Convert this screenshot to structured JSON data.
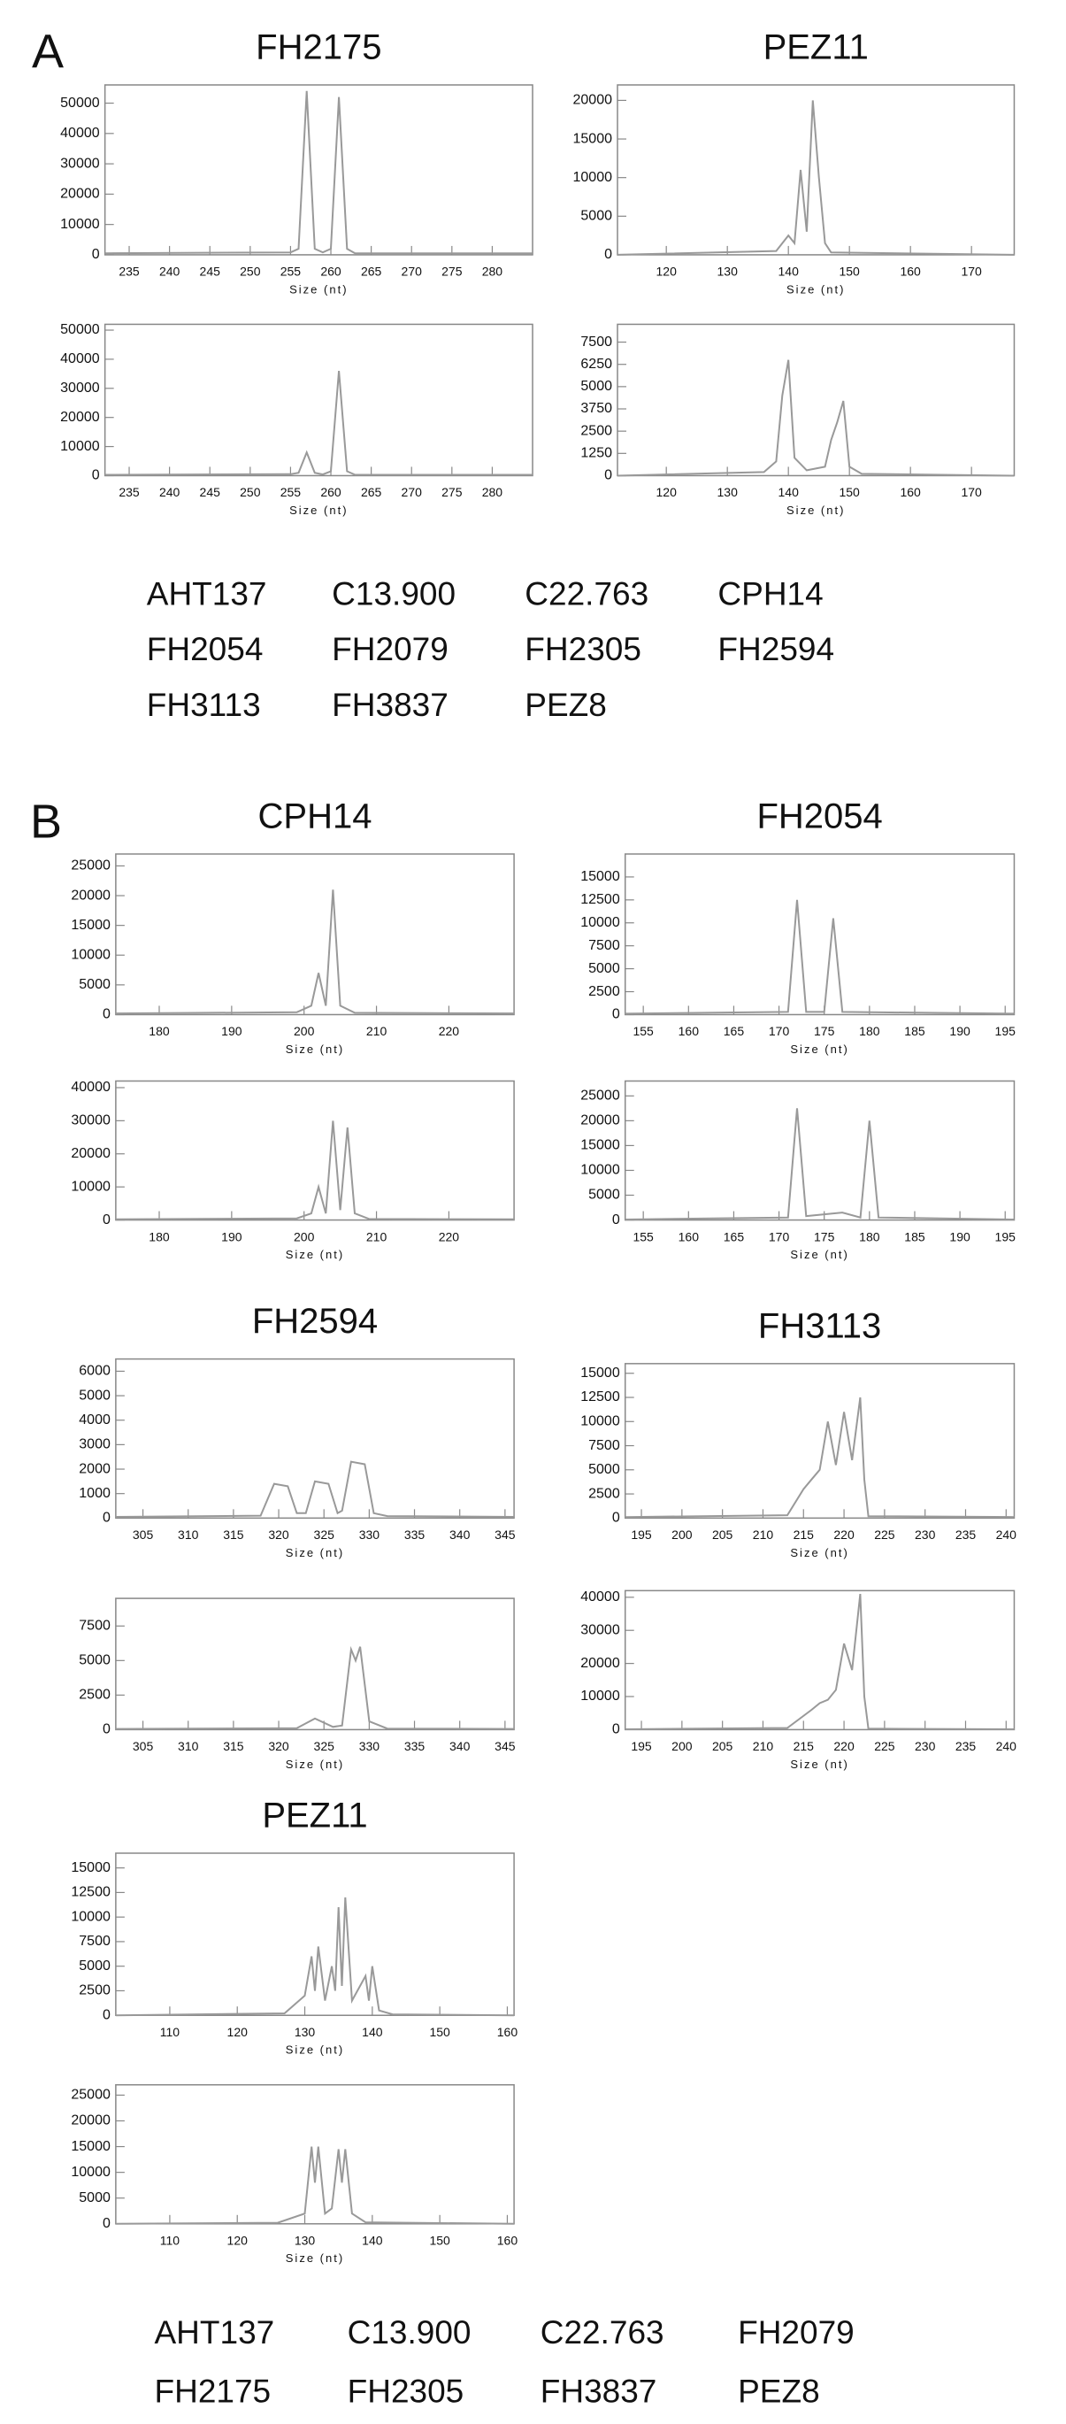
{
  "figure": {
    "label_a": "A",
    "label_b": "B",
    "markers_a": [
      [
        "AHT137",
        "C13.900",
        "C22.763",
        "CPH14"
      ],
      [
        "FH2054",
        "FH2079",
        "FH2305",
        "FH2594"
      ],
      [
        "FH3113",
        "FH3837",
        "PEZ8"
      ]
    ],
    "markers_b": [
      [
        "AHT137",
        "C13.900",
        "C22.763",
        "FH2079"
      ],
      [
        "FH2175",
        "FH2305",
        "FH3837",
        "PEZ8"
      ]
    ]
  },
  "chart_data": [
    {
      "type": "line",
      "title": "FH2175",
      "xlabel": "Size (nt)",
      "color": "#999999",
      "xlim": [
        232,
        285
      ],
      "xticks": [
        235,
        240,
        245,
        250,
        255,
        260,
        265,
        270,
        275,
        280
      ],
      "ylim": [
        0,
        56000
      ],
      "yticks": [
        0,
        10000,
        20000,
        30000,
        40000,
        50000
      ],
      "x": [
        232,
        255,
        256,
        257,
        258,
        259,
        260,
        261,
        262,
        263,
        285
      ],
      "values": [
        500,
        800,
        2000,
        54000,
        2000,
        800,
        2000,
        52000,
        2000,
        500,
        500
      ]
    },
    {
      "type": "line",
      "xlabel": "Size (nt)",
      "color": "#999999",
      "xlim": [
        232,
        285
      ],
      "xticks": [
        235,
        240,
        245,
        250,
        255,
        260,
        265,
        270,
        275,
        280
      ],
      "ylim": [
        0,
        52000
      ],
      "yticks": [
        0,
        10000,
        20000,
        30000,
        40000,
        50000
      ],
      "x": [
        232,
        255,
        256,
        257,
        258,
        259,
        260,
        261,
        262,
        263,
        285
      ],
      "values": [
        300,
        500,
        1000,
        8000,
        1000,
        400,
        1500,
        36000,
        1500,
        300,
        300
      ]
    },
    {
      "type": "line",
      "title": "PEZ11",
      "xlabel": "Size (nt)",
      "color": "#999999",
      "xlim": [
        112,
        177
      ],
      "xticks": [
        120,
        130,
        140,
        150,
        160,
        170
      ],
      "ylim": [
        0,
        22000
      ],
      "yticks": [
        0,
        5000,
        10000,
        15000,
        20000
      ],
      "x": [
        112,
        138,
        140,
        141,
        142,
        143,
        144,
        145,
        146,
        147,
        177
      ],
      "values": [
        0,
        500,
        2500,
        1500,
        11000,
        3000,
        20000,
        10000,
        1500,
        300,
        0
      ]
    },
    {
      "type": "line",
      "xlabel": "Size (nt)",
      "color": "#999999",
      "xlim": [
        112,
        177
      ],
      "xticks": [
        120,
        130,
        140,
        150,
        160,
        170
      ],
      "ylim": [
        0,
        8500
      ],
      "yticks": [
        0,
        1250,
        2500,
        3750,
        5000,
        6250,
        7500
      ],
      "x": [
        112,
        136,
        138,
        139,
        140,
        141,
        143,
        146,
        147,
        148,
        149,
        150,
        152,
        177
      ],
      "values": [
        0,
        200,
        800,
        4500,
        6500,
        1000,
        300,
        500,
        2000,
        3000,
        4200,
        500,
        100,
        0
      ]
    },
    {
      "type": "line",
      "title": "CPH14",
      "xlabel": "Size (nt)",
      "color": "#999999",
      "xlim": [
        174,
        229
      ],
      "xticks": [
        180,
        190,
        200,
        210,
        220
      ],
      "ylim": [
        0,
        27000
      ],
      "yticks": [
        0,
        5000,
        10000,
        15000,
        20000,
        25000
      ],
      "x": [
        174,
        199,
        201,
        202,
        203,
        204,
        205,
        207,
        229
      ],
      "values": [
        200,
        400,
        1500,
        7000,
        1500,
        21000,
        1500,
        300,
        200
      ]
    },
    {
      "type": "line",
      "xlabel": "Size (nt)",
      "color": "#999999",
      "xlim": [
        174,
        229
      ],
      "xticks": [
        180,
        190,
        200,
        210,
        220
      ],
      "ylim": [
        0,
        42000
      ],
      "yticks": [
        0,
        10000,
        20000,
        30000,
        40000
      ],
      "x": [
        174,
        199,
        201,
        202,
        203,
        204,
        205,
        206,
        207,
        209,
        229
      ],
      "values": [
        200,
        500,
        2000,
        10000,
        2000,
        30000,
        3000,
        28000,
        2000,
        300,
        200
      ]
    },
    {
      "type": "line",
      "title": "FH2054",
      "xlabel": "Size (nt)",
      "color": "#999999",
      "xlim": [
        153,
        196
      ],
      "xticks": [
        155,
        160,
        165,
        170,
        175,
        180,
        185,
        190,
        195
      ],
      "ylim": [
        0,
        17500
      ],
      "yticks": [
        0,
        2500,
        5000,
        7500,
        10000,
        12500,
        15000
      ],
      "x": [
        153,
        171,
        172,
        173,
        175,
        176,
        177,
        196
      ],
      "values": [
        100,
        300,
        12500,
        300,
        300,
        10500,
        300,
        100
      ]
    },
    {
      "type": "line",
      "xlabel": "Size (nt)",
      "color": "#999999",
      "xlim": [
        153,
        196
      ],
      "xticks": [
        155,
        160,
        165,
        170,
        175,
        180,
        185,
        190,
        195
      ],
      "ylim": [
        0,
        28000
      ],
      "yticks": [
        0,
        5000,
        10000,
        15000,
        20000,
        25000
      ],
      "x": [
        153,
        171,
        172,
        173,
        177,
        179,
        180,
        181,
        196
      ],
      "values": [
        100,
        500,
        22500,
        800,
        1500,
        500,
        20000,
        500,
        100
      ]
    },
    {
      "type": "line",
      "title": "FH2594",
      "xlabel": "Size (nt)",
      "color": "#999999",
      "xlim": [
        302,
        346
      ],
      "xticks": [
        305,
        310,
        315,
        320,
        325,
        330,
        335,
        340,
        345
      ],
      "ylim": [
        0,
        6500
      ],
      "yticks": [
        0,
        1000,
        2000,
        3000,
        4000,
        5000,
        6000
      ],
      "x": [
        302,
        318,
        319.5,
        321,
        322,
        323,
        324,
        325.5,
        326.5,
        327,
        328,
        329.5,
        330.5,
        332,
        346
      ],
      "values": [
        50,
        100,
        1400,
        1300,
        200,
        200,
        1500,
        1400,
        200,
        300,
        2300,
        2200,
        200,
        80,
        50
      ]
    },
    {
      "type": "line",
      "xlabel": "Size (nt)",
      "color": "#999999",
      "xlim": [
        302,
        346
      ],
      "xticks": [
        305,
        310,
        315,
        320,
        325,
        330,
        335,
        340,
        345
      ],
      "ylim": [
        0,
        9500
      ],
      "yticks": [
        0,
        2500,
        5000,
        7500
      ],
      "x": [
        302,
        322,
        324,
        326,
        327,
        328,
        328.5,
        329,
        330,
        332,
        346
      ],
      "values": [
        50,
        100,
        800,
        200,
        300,
        5800,
        5000,
        6000,
        600,
        80,
        50
      ]
    },
    {
      "type": "line",
      "title": "FH3113",
      "xlabel": "Size (nt)",
      "color": "#999999",
      "xlim": [
        193,
        241
      ],
      "xticks": [
        195,
        200,
        205,
        210,
        215,
        220,
        225,
        230,
        235,
        240
      ],
      "ylim": [
        0,
        16000
      ],
      "yticks": [
        0,
        2500,
        5000,
        7500,
        10000,
        12500,
        15000
      ],
      "x": [
        193,
        213,
        215,
        216,
        217,
        218,
        219,
        220,
        221,
        222,
        222.5,
        223,
        241
      ],
      "values": [
        100,
        300,
        3000,
        4000,
        5000,
        10000,
        5500,
        11000,
        6000,
        12500,
        4000,
        200,
        100
      ]
    },
    {
      "type": "line",
      "xlabel": "Size (nt)",
      "color": "#999999",
      "xlim": [
        193,
        241
      ],
      "xticks": [
        195,
        200,
        205,
        210,
        215,
        220,
        225,
        230,
        235,
        240
      ],
      "ylim": [
        0,
        42000
      ],
      "yticks": [
        0,
        10000,
        20000,
        30000,
        40000
      ],
      "x": [
        193,
        213,
        216,
        217,
        218,
        219,
        220,
        221,
        222,
        222.5,
        223,
        241
      ],
      "values": [
        100,
        500,
        6000,
        8000,
        9000,
        12000,
        26000,
        18000,
        41000,
        10000,
        300,
        100
      ]
    },
    {
      "type": "line",
      "title": "PEZ11",
      "xlabel": "Size (nt)",
      "color": "#999999",
      "xlim": [
        102,
        161
      ],
      "xticks": [
        110,
        120,
        130,
        140,
        150,
        160
      ],
      "ylim": [
        0,
        16500
      ],
      "yticks": [
        0,
        2500,
        5000,
        7500,
        10000,
        12500,
        15000
      ],
      "x": [
        102,
        127,
        130,
        131,
        131.5,
        132,
        133,
        134,
        134.5,
        135,
        135.5,
        136,
        137,
        139,
        139.5,
        140,
        141,
        143,
        161
      ],
      "values": [
        0,
        200,
        2000,
        6000,
        2500,
        7000,
        1500,
        5000,
        2500,
        11000,
        3000,
        12000,
        1500,
        4000,
        1500,
        5000,
        500,
        100,
        0
      ]
    },
    {
      "type": "line",
      "xlabel": "Size (nt)",
      "color": "#999999",
      "xlim": [
        102,
        161
      ],
      "xticks": [
        110,
        120,
        130,
        140,
        150,
        160
      ],
      "ylim": [
        0,
        27000
      ],
      "yticks": [
        0,
        5000,
        10000,
        15000,
        20000,
        25000
      ],
      "x": [
        102,
        126,
        130,
        131,
        131.5,
        132,
        133,
        134,
        135,
        135.5,
        136,
        137,
        139,
        161
      ],
      "values": [
        0,
        200,
        2000,
        15000,
        8000,
        15000,
        2000,
        3000,
        14500,
        8000,
        14500,
        2000,
        300,
        0
      ]
    }
  ]
}
